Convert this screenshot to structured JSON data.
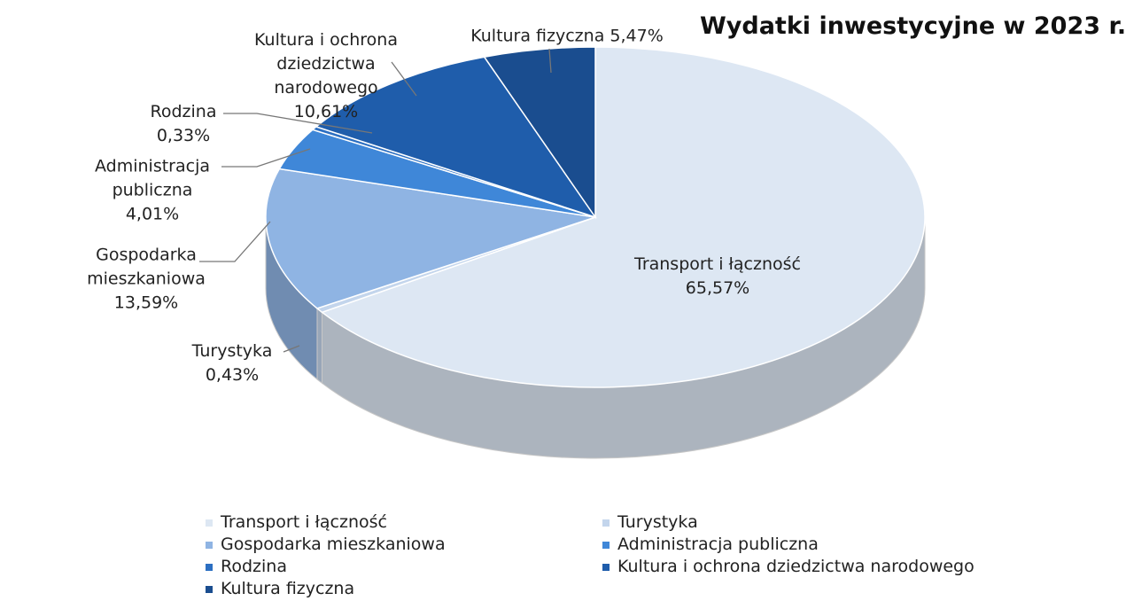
{
  "chart_data": {
    "type": "pie",
    "title": "Wydatki inwestycyjne w 2023 r.",
    "categories": [
      "Transport i łączność",
      "Turystyka",
      "Gospodarka mieszkaniowa",
      "Administracja publiczna",
      "Rodzina",
      "Kultura i ochrona dziedzictwa narodowego",
      "Kultura fizyczna"
    ],
    "values": [
      65.57,
      0.43,
      13.59,
      4.01,
      0.33,
      10.61,
      5.47
    ],
    "value_labels": [
      "65,57%",
      "0,43%",
      "13,59%",
      "4,01%",
      "0,33%",
      "10,61%",
      "5,47%"
    ],
    "colors": [
      "#dde7f3",
      "#c3d5ec",
      "#8fb4e3",
      "#3f87d8",
      "#2c6fc2",
      "#1f5dab",
      "#1a4d8f"
    ],
    "legend": "bottom"
  }
}
